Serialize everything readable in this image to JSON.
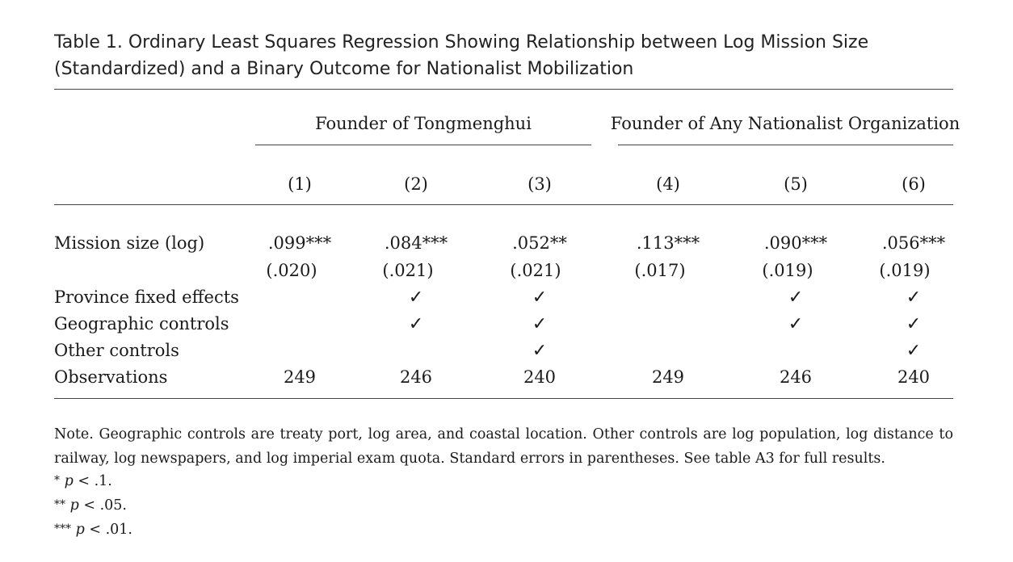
{
  "caption": "Table 1. Ordinary Least Squares Regression Showing Relationship between Log Mission Size (Standardized) and a Binary Outcome for Nationalist Mobilization",
  "groups": [
    {
      "label": "Founder of Tongmenghui"
    },
    {
      "label": "Founder of Any Nationalist Organization"
    }
  ],
  "columns": [
    "(1)",
    "(2)",
    "(3)",
    "(4)",
    "(5)",
    "(6)"
  ],
  "rows": {
    "mission": {
      "label": "Mission size (log)",
      "coef": [
        ".099***",
        ".084***",
        ".052**",
        ".113***",
        ".090***",
        ".056***"
      ],
      "se": [
        "(.020)",
        "(.021)",
        "(.021)",
        "(.017)",
        "(.019)",
        "(.019)"
      ]
    },
    "province": {
      "label": "Province fixed effects",
      "checks": [
        "",
        "✓",
        "✓",
        "",
        "✓",
        "✓"
      ]
    },
    "geo": {
      "label": "Geographic controls",
      "checks": [
        "",
        "✓",
        "✓",
        "",
        "✓",
        "✓"
      ]
    },
    "other": {
      "label": "Other controls",
      "checks": [
        "",
        "",
        "✓",
        "",
        "",
        "✓"
      ]
    },
    "obs": {
      "label": "Observations",
      "values": [
        "249",
        "246",
        "240",
        "249",
        "246",
        "240"
      ]
    }
  },
  "note": "Note. Geographic controls are treaty port, log area, and coastal location. Other controls are log population, log distance to railway, log newspapers, and log imperial exam quota. Standard errors in parentheses. See table A3 for full results.",
  "significance": [
    {
      "stars": "*",
      "p": "p",
      "text": "< .1."
    },
    {
      "stars": "**",
      "p": "p",
      "text": "< .05."
    },
    {
      "stars": "***",
      "p": "p",
      "text": "< .01."
    }
  ]
}
